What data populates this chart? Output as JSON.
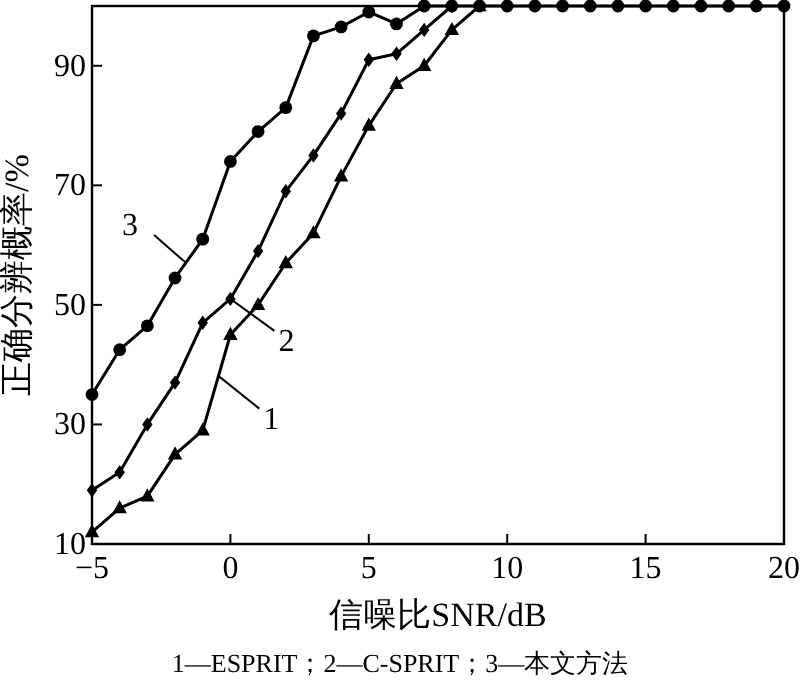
{
  "chart_data": {
    "type": "line",
    "xlabel": "信噪比SNR/dB",
    "ylabel": "正确分辨概率/%",
    "x": [
      -5,
      -4,
      -3,
      -2,
      -1,
      0,
      1,
      2,
      3,
      4,
      5,
      6,
      7,
      8,
      9,
      10,
      11,
      12,
      13,
      14,
      15,
      16,
      17,
      18,
      19,
      20
    ],
    "series": [
      {
        "color": "#000000",
        "marker": "triangle",
        "values": [
          12,
          16,
          18,
          25,
          29,
          45,
          50,
          57,
          62,
          71.5,
          80,
          87,
          90,
          96,
          100,
          null,
          null,
          null,
          null,
          null,
          null,
          null,
          null,
          null,
          null,
          null
        ]
      },
      {
        "color": "#000000",
        "marker": "diamond",
        "values": [
          19,
          22,
          30,
          37,
          47,
          51,
          59,
          69,
          75,
          82,
          91,
          92,
          96,
          100,
          null,
          null,
          null,
          null,
          null,
          null,
          null,
          null,
          null,
          null,
          null,
          null
        ]
      },
      {
        "color": "#000000",
        "marker": "circle",
        "values": [
          35,
          42.5,
          46.5,
          54.5,
          61,
          74,
          79,
          83,
          95,
          96.5,
          99,
          97,
          100,
          100,
          100,
          100,
          100,
          100,
          100,
          100,
          100,
          100,
          100,
          100,
          100,
          100
        ]
      }
    ],
    "xlim": [
      -5,
      20
    ],
    "xticks": [
      -5,
      0,
      5,
      10,
      15,
      20
    ],
    "ylim": [
      10,
      100
    ],
    "yticks": [
      10,
      30,
      50,
      70,
      90
    ],
    "grid": false,
    "line_style": "solid",
    "annotations": [
      {
        "text": "1",
        "x": -0.4,
        "y": 38
      },
      {
        "text": "2",
        "x": 0,
        "y": 51
      },
      {
        "text": "3",
        "x": -1.6,
        "y": 57
      },
      "1—ESPRIT；2—C-SPRIT；3—本文方法"
    ]
  }
}
